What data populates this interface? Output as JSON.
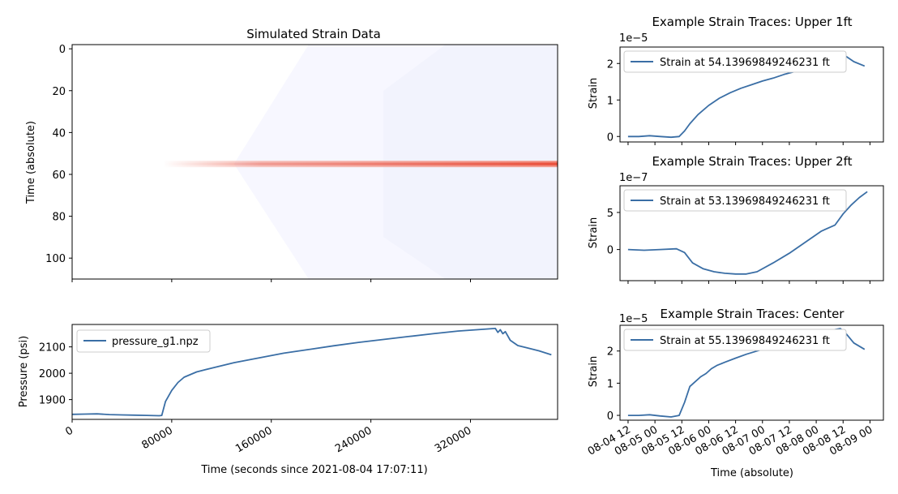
{
  "colors": {
    "line": "#3a6ea5",
    "heat_red": "#e8402a",
    "heat_bg": "#f7f7ff",
    "heat_bg2": "#eef0fb"
  },
  "chart_data": [
    {
      "id": "heatmap",
      "type": "heatmap",
      "title": "Simulated Strain Data",
      "xlabel": "",
      "ylabel": "Time (absolute)",
      "xlim": [
        0,
        390000
      ],
      "ylim": [
        110,
        -2
      ],
      "y_ticks": [
        "0",
        "20",
        "40",
        "60",
        "80",
        "100"
      ],
      "y_tick_values": [
        0,
        20,
        40,
        60,
        80,
        100
      ],
      "x_tick_values": [
        0,
        80000,
        160000,
        240000,
        320000
      ],
      "band": {
        "y_center": 55,
        "x_start": 73000,
        "x_end": 390000
      }
    },
    {
      "id": "pressure",
      "type": "line",
      "title": "",
      "xlabel": "Time (seconds since 2021-08-04 17:07:11)",
      "ylabel": "Pressure (psi)",
      "xlim": [
        0,
        390000
      ],
      "ylim": [
        1825,
        2185
      ],
      "x_ticks": [
        "0",
        "80000",
        "160000",
        "240000",
        "320000"
      ],
      "x_tick_values": [
        0,
        80000,
        160000,
        240000,
        320000
      ],
      "y_ticks": [
        "1900",
        "2000",
        "2100"
      ],
      "y_tick_values": [
        1900,
        2000,
        2100
      ],
      "legend": "top-left",
      "series": [
        {
          "name": "pressure_g1.npz",
          "x": [
            0,
            10000,
            20000,
            30000,
            40000,
            50000,
            60000,
            70000,
            72000,
            75000,
            80000,
            85000,
            90000,
            100000,
            110000,
            130000,
            150000,
            170000,
            190000,
            210000,
            230000,
            250000,
            270000,
            290000,
            310000,
            325000,
            340000,
            342000,
            344000,
            346000,
            348000,
            352000,
            358000,
            365000,
            375000,
            385000
          ],
          "y": [
            1844,
            1845,
            1846,
            1843,
            1842,
            1841,
            1840,
            1839,
            1840,
            1893,
            1935,
            1965,
            1985,
            2005,
            2017,
            2040,
            2058,
            2076,
            2090,
            2104,
            2117,
            2128,
            2139,
            2150,
            2160,
            2165,
            2170,
            2155,
            2165,
            2150,
            2158,
            2125,
            2105,
            2097,
            2085,
            2070
          ]
        }
      ]
    },
    {
      "id": "trace-upper-1ft",
      "type": "line",
      "title": "Example Strain Traces: Upper 1ft",
      "ylabel": "Strain",
      "offset_text": "1e−5",
      "xlim": [
        -0.15,
        4.75
      ],
      "ylim": [
        -0.15,
        2.45
      ],
      "y_ticks": [
        "0",
        "1",
        "2"
      ],
      "y_tick_values": [
        0,
        1,
        2
      ],
      "legend": "top-left",
      "series": [
        {
          "name": "Strain at 54.13969849246231 ft",
          "x": [
            0.0,
            0.2,
            0.4,
            0.6,
            0.8,
            0.95,
            1.05,
            1.15,
            1.3,
            1.5,
            1.7,
            1.9,
            2.1,
            2.3,
            2.5,
            2.7,
            2.9,
            3.1,
            3.3,
            3.5,
            3.7,
            3.85,
            3.95,
            4.05,
            4.2,
            4.4
          ],
          "y": [
            0.0,
            0.0,
            0.02,
            0.0,
            -0.02,
            0.0,
            0.15,
            0.35,
            0.6,
            0.85,
            1.05,
            1.2,
            1.32,
            1.42,
            1.52,
            1.6,
            1.7,
            1.78,
            1.88,
            1.98,
            2.1,
            2.2,
            2.25,
            2.2,
            2.05,
            1.93
          ]
        }
      ]
    },
    {
      "id": "trace-upper-2ft",
      "type": "line",
      "title": "Example Strain Traces: Upper 2ft",
      "ylabel": "Strain",
      "offset_text": "1e−7",
      "xlim": [
        -0.15,
        4.75
      ],
      "ylim": [
        -4.2,
        8.6
      ],
      "y_ticks": [
        "0",
        "5"
      ],
      "y_tick_values": [
        0,
        5
      ],
      "legend": "top-left",
      "series": [
        {
          "name": "Strain at 53.13969849246231 ft",
          "x": [
            0.0,
            0.3,
            0.6,
            0.9,
            1.05,
            1.2,
            1.4,
            1.6,
            1.8,
            2.0,
            2.2,
            2.4,
            2.7,
            3.0,
            3.3,
            3.6,
            3.85,
            4.0,
            4.15,
            4.3,
            4.45
          ],
          "y": [
            0.0,
            -0.1,
            0.0,
            0.1,
            -0.4,
            -1.8,
            -2.6,
            -3.0,
            -3.2,
            -3.3,
            -3.3,
            -3.0,
            -1.8,
            -0.5,
            1.0,
            2.5,
            3.3,
            4.8,
            6.0,
            7.0,
            7.8
          ]
        }
      ]
    },
    {
      "id": "trace-center",
      "type": "line",
      "title": "Example Strain Traces: Center",
      "xlabel": "Time (absolute)",
      "ylabel": "Strain",
      "offset_text": "1e−5",
      "xlim": [
        -0.15,
        4.75
      ],
      "ylim": [
        -0.15,
        2.8
      ],
      "y_ticks": [
        "0",
        "1",
        "2"
      ],
      "y_tick_values": [
        0,
        1,
        2
      ],
      "x_ticks": [
        "08-04 12",
        "08-05 00",
        "08-05 12",
        "08-06 00",
        "08-06 12",
        "08-07 00",
        "08-07 12",
        "08-08 00",
        "08-08 12",
        "08-09 00"
      ],
      "legend": "top-left",
      "series": [
        {
          "name": "Strain at 55.13969849246231 ft",
          "x": [
            0.0,
            0.2,
            0.4,
            0.6,
            0.8,
            0.95,
            1.05,
            1.15,
            1.25,
            1.35,
            1.45,
            1.55,
            1.65,
            1.8,
            2.0,
            2.2,
            2.4,
            2.6,
            2.8,
            3.0,
            3.2,
            3.4,
            3.6,
            3.8,
            3.95,
            4.05,
            4.2,
            4.4
          ],
          "y": [
            0.0,
            0.0,
            0.02,
            -0.02,
            -0.05,
            0.0,
            0.4,
            0.9,
            1.05,
            1.2,
            1.3,
            1.45,
            1.55,
            1.65,
            1.78,
            1.9,
            2.0,
            2.1,
            2.2,
            2.3,
            2.4,
            2.5,
            2.6,
            2.65,
            2.7,
            2.55,
            2.25,
            2.05
          ]
        }
      ]
    }
  ]
}
